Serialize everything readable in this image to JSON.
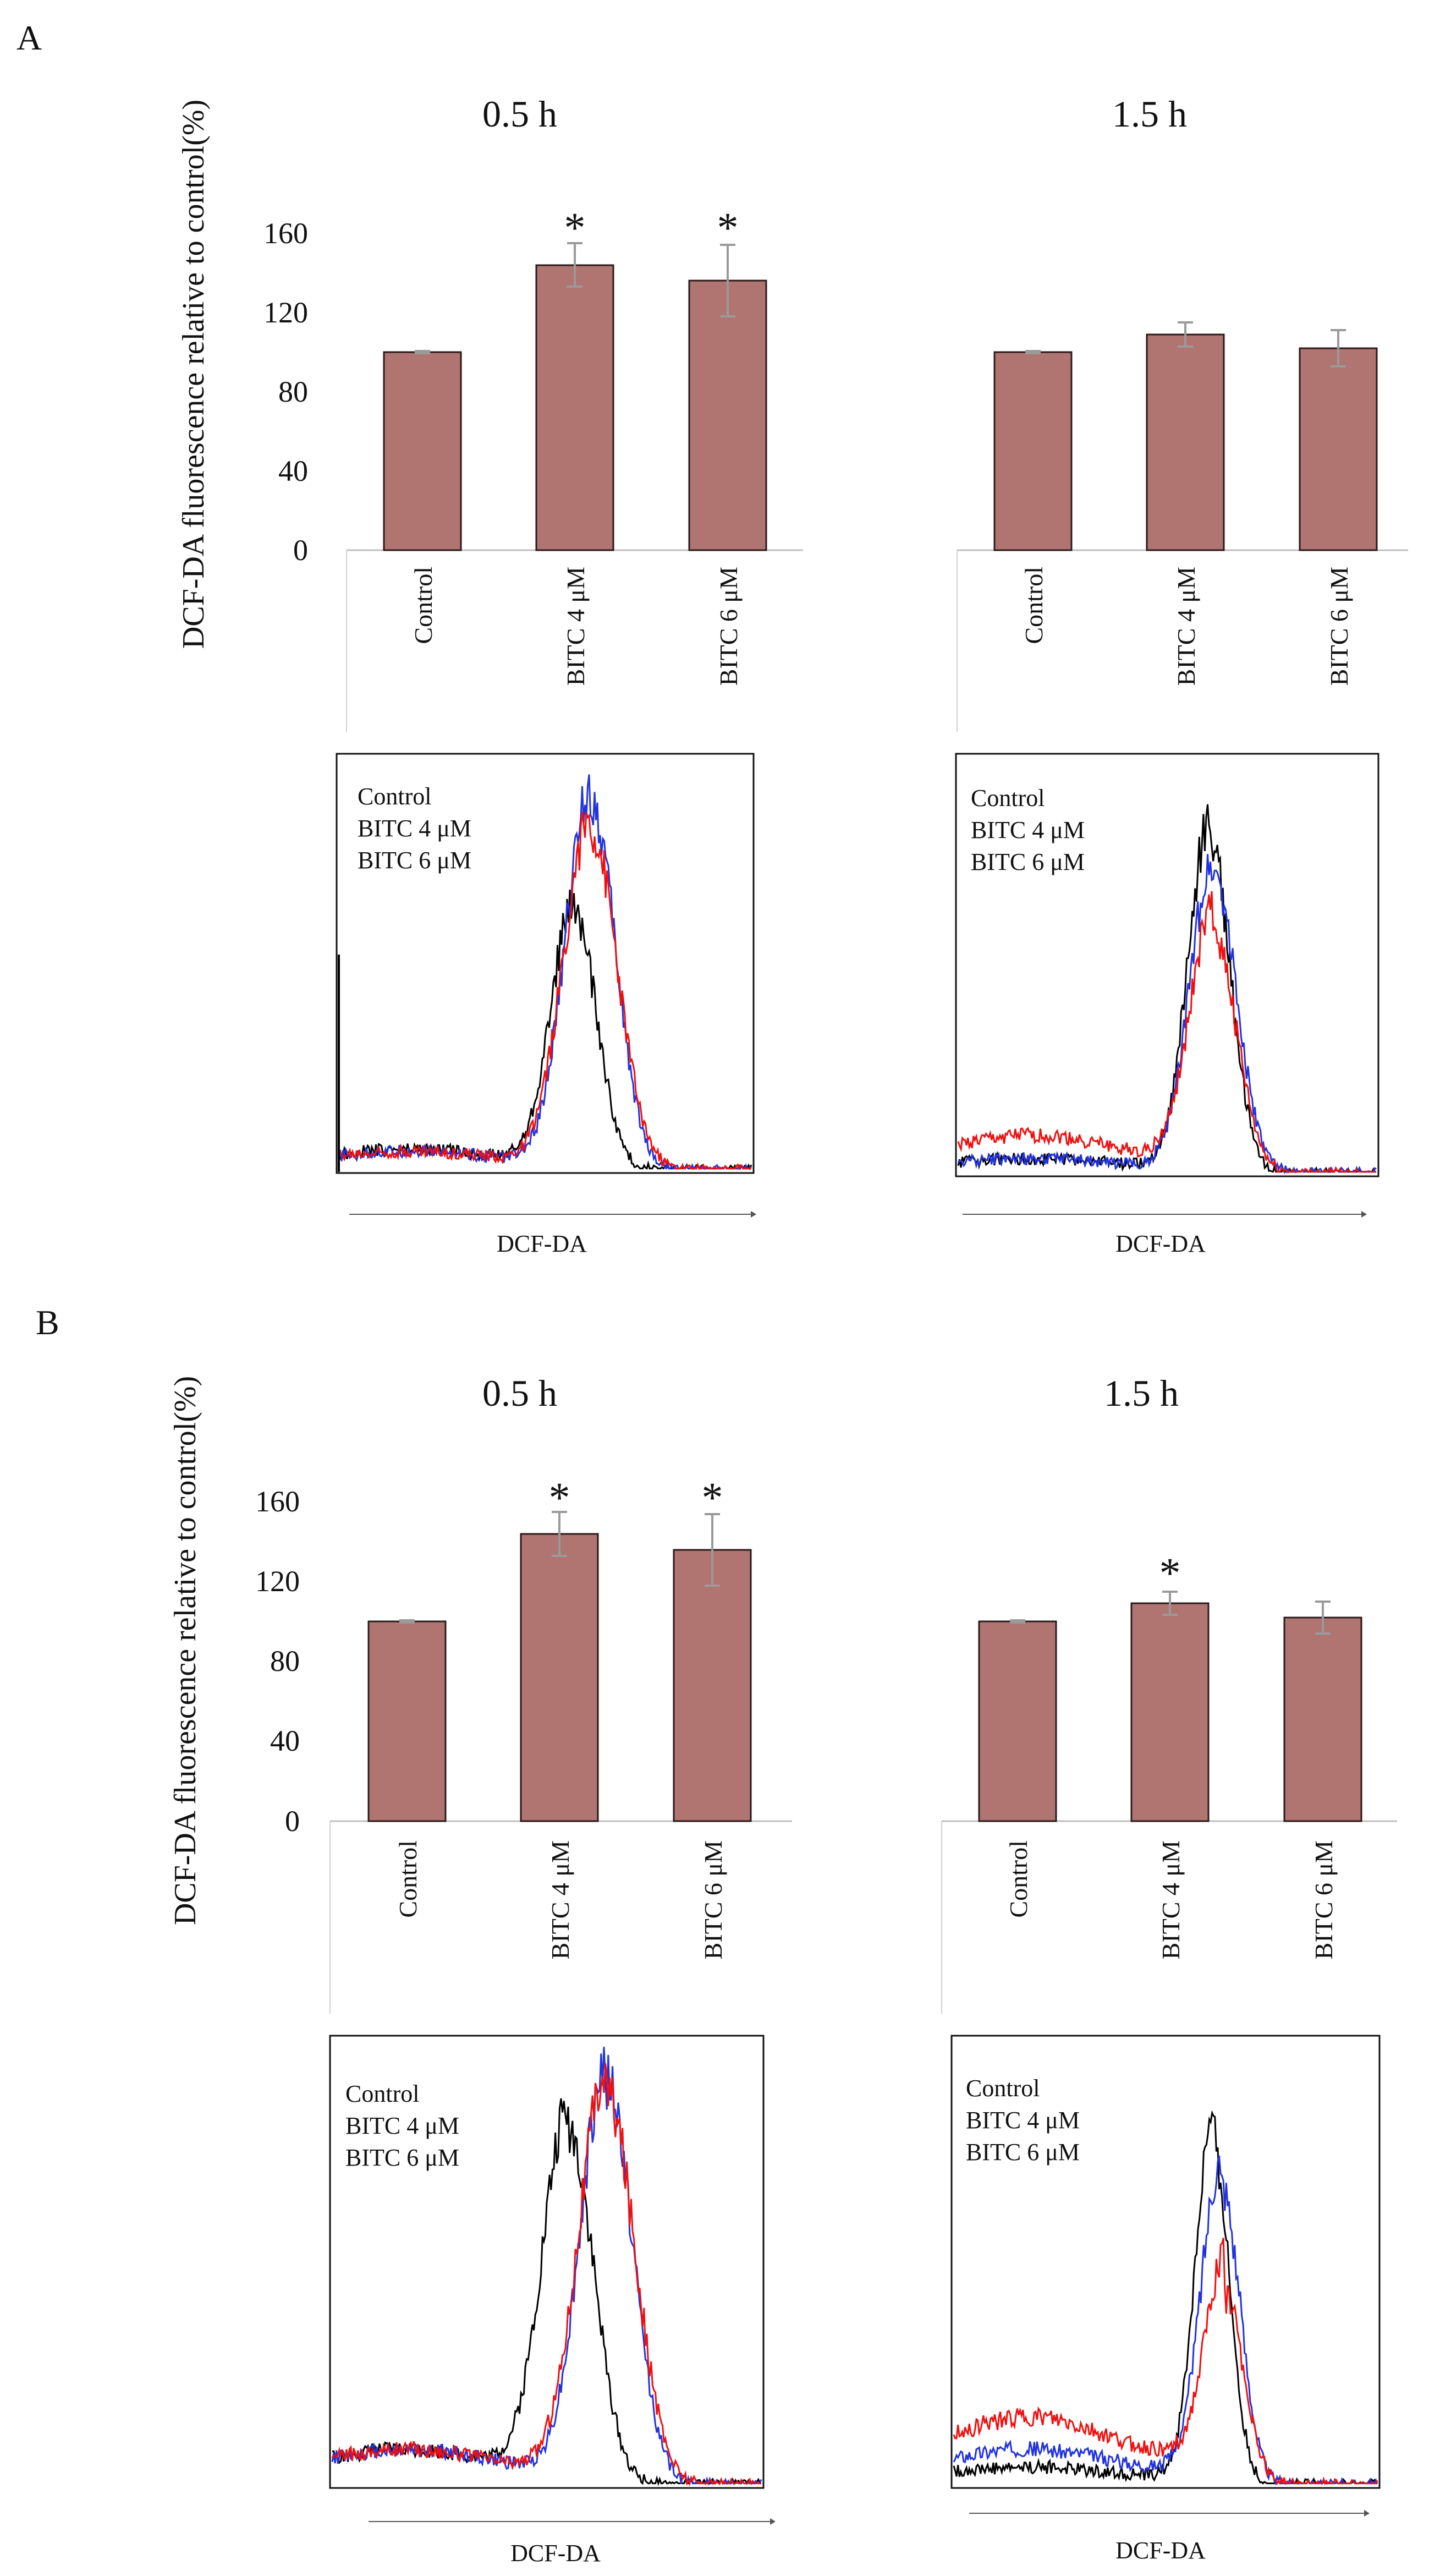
{
  "colors": {
    "bar_fill": "#b07471",
    "bar_stroke": "#2a1a1a",
    "errorbar": "#9a9a9a",
    "axis": "#bfbfbf",
    "control_line": "#000000",
    "bitc4_line": "#2233dd",
    "bitc6_line": "#ee1111"
  },
  "chart_data": [
    {
      "panel": "A",
      "type": "bar",
      "ylabel": "DCF-DA fluorescence relative to control(%)",
      "ylim": [
        0,
        160
      ],
      "yticks": [
        "0",
        "40",
        "80",
        "120",
        "160"
      ],
      "groups": [
        {
          "title": "0.5 h",
          "categories": [
            "Control",
            "BITC 4 μM",
            "BITC 6 μM"
          ],
          "values": [
            100,
            144,
            136
          ],
          "errors": [
            0.5,
            11,
            18
          ],
          "significant": [
            false,
            true,
            true
          ]
        },
        {
          "title": "1.5 h",
          "categories": [
            "Control",
            "BITC 4 μM",
            "BITC 6 μM"
          ],
          "values": [
            100,
            109,
            102
          ],
          "errors": [
            0.5,
            6,
            9
          ],
          "significant": [
            false,
            false,
            false
          ]
        }
      ],
      "significance_mark": "*"
    },
    {
      "panel": "A",
      "type": "line",
      "subtype": "histogram",
      "xlabel": "DCF-DA",
      "legend": [
        "Control",
        "BITC 4 μM",
        "BITC 6 μM"
      ],
      "panels": [
        {
          "time": "0.5 h",
          "series": [
            {
              "name": "Control",
              "baseline": 0.05,
              "peak_x": 0.57,
              "peak_height": 0.62,
              "width": 0.055
            },
            {
              "name": "BITC 4 μM",
              "baseline": 0.045,
              "peak_x": 0.61,
              "peak_height": 0.9,
              "width": 0.06
            },
            {
              "name": "BITC 6 μM",
              "baseline": 0.045,
              "peak_x": 0.61,
              "peak_height": 0.82,
              "width": 0.065
            }
          ]
        },
        {
          "time": "1.5 h",
          "series": [
            {
              "name": "Control",
              "baseline": 0.035,
              "peak_x": 0.6,
              "peak_height": 0.82,
              "width": 0.05
            },
            {
              "name": "BITC 4 μM",
              "baseline": 0.035,
              "peak_x": 0.61,
              "peak_height": 0.73,
              "width": 0.055
            },
            {
              "name": "BITC 6 μM",
              "baseline": 0.09,
              "peak_x": 0.61,
              "peak_height": 0.58,
              "width": 0.055
            }
          ]
        }
      ]
    },
    {
      "panel": "B",
      "type": "bar",
      "ylabel": "DCF-DA fluorescence relative to control(%)",
      "ylim": [
        0,
        160
      ],
      "yticks": [
        "0",
        "40",
        "80",
        "120",
        "160"
      ],
      "groups": [
        {
          "title": "0.5 h",
          "categories": [
            "Control",
            "BITC 4 μM",
            "BITC 6 μM"
          ],
          "values": [
            100,
            144,
            136
          ],
          "errors": [
            0.5,
            11,
            18
          ],
          "significant": [
            false,
            true,
            true
          ]
        },
        {
          "title": "1.5 h",
          "categories": [
            "Control",
            "BITC 4 μM",
            "BITC 6 μM"
          ],
          "values": [
            100,
            109,
            102
          ],
          "errors": [
            0.5,
            6,
            8
          ],
          "significant": [
            false,
            true,
            false
          ]
        }
      ],
      "significance_mark": "*"
    },
    {
      "panel": "B",
      "type": "line",
      "subtype": "histogram",
      "xlabel": "DCF-DA",
      "legend": [
        "Control",
        "BITC 4 μM",
        "BITC 6 μM"
      ],
      "panels": [
        {
          "time": "0.5 h",
          "series": [
            {
              "name": "Control",
              "baseline": 0.08,
              "peak_x": 0.55,
              "peak_height": 0.8,
              "width": 0.06
            },
            {
              "name": "BITC 4 μM",
              "baseline": 0.08,
              "peak_x": 0.64,
              "peak_height": 0.9,
              "width": 0.06
            },
            {
              "name": "BITC 6 μM",
              "baseline": 0.08,
              "peak_x": 0.64,
              "peak_height": 0.88,
              "width": 0.065
            }
          ]
        },
        {
          "time": "1.5 h",
          "series": [
            {
              "name": "Control",
              "baseline": 0.04,
              "peak_x": 0.61,
              "peak_height": 0.78,
              "width": 0.04
            },
            {
              "name": "BITC 4 μM",
              "baseline": 0.08,
              "peak_x": 0.63,
              "peak_height": 0.68,
              "width": 0.045
            },
            {
              "name": "BITC 6 μM",
              "baseline": 0.15,
              "peak_x": 0.64,
              "peak_height": 0.42,
              "width": 0.045
            }
          ]
        }
      ]
    }
  ]
}
